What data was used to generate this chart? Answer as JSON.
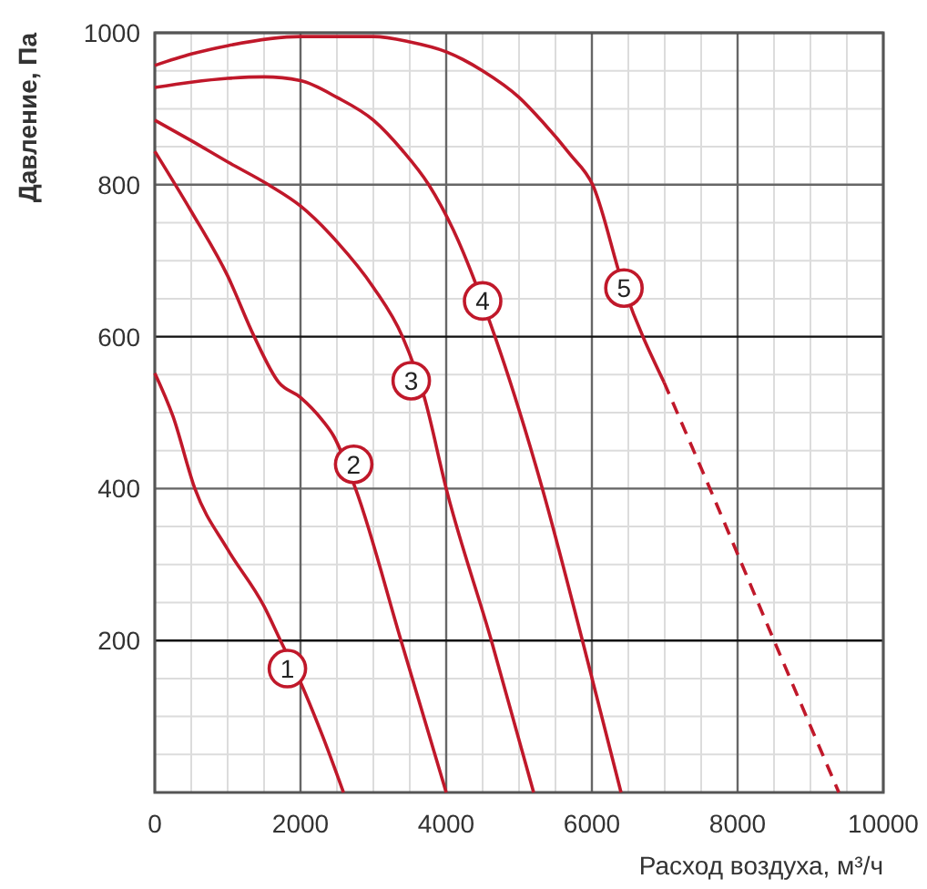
{
  "chart_data": {
    "type": "line",
    "xlabel": "Расход воздуха, м³/ч",
    "ylabel": "Давление, Па",
    "xlim": [
      0,
      10000
    ],
    "xticks": [
      0,
      2000,
      4000,
      6000,
      8000,
      10000
    ],
    "ylim": [
      0,
      1000
    ],
    "yticks": [
      200,
      400,
      600,
      800,
      1000
    ],
    "grid": true,
    "marker": "none",
    "series": [
      {
        "color": "#c0182a",
        "line_style": "solid",
        "x": [
          0,
          250,
          550,
          1000,
          1500,
          1725,
          2000,
          2300,
          2590
        ],
        "values": [
          552,
          495,
          400,
          320,
          245,
          200,
          145,
          75,
          0
        ]
      },
      {
        "color": "#c0182a",
        "line_style": "solid",
        "x": [
          0,
          500,
          1000,
          1365,
          1700,
          2000,
          2300,
          2450,
          2755,
          3380,
          4000
        ],
        "values": [
          844,
          765,
          680,
          600,
          540,
          520,
          490,
          470,
          400,
          200,
          0
        ]
      },
      {
        "color": "#c0182a",
        "line_style": "solid",
        "x": [
          0,
          500,
          1000,
          1560,
          2000,
          2500,
          3000,
          3400,
          3700,
          4000,
          4620,
          5200
        ],
        "values": [
          885,
          858,
          830,
          800,
          772,
          725,
          665,
          600,
          520,
          400,
          200,
          0
        ]
      },
      {
        "color": "#c0182a",
        "line_style": "solid",
        "x": [
          0,
          500,
          1000,
          1500,
          2000,
          2500,
          3000,
          3400,
          3760,
          4100,
          4670,
          5320,
          5870,
          6400
        ],
        "values": [
          928,
          935,
          940,
          942,
          937,
          915,
          885,
          845,
          800,
          740,
          600,
          400,
          200,
          0
        ]
      },
      {
        "color": "#c0182a",
        "line_style": "solid",
        "x": [
          0,
          500,
          1000,
          2000,
          3000,
          3500,
          4000,
          4500,
          5000,
          5320,
          5700,
          6010,
          6440,
          6990
        ],
        "values": [
          957,
          972,
          983,
          995,
          995,
          988,
          975,
          950,
          915,
          883,
          840,
          800,
          664,
          540
        ]
      },
      {
        "color": "#c0182a",
        "line_style": "dashed",
        "x": [
          6990,
          7620,
          8500,
          9390
        ],
        "values": [
          540,
          400,
          200,
          0
        ]
      }
    ],
    "annotations": [
      {
        "text": "1",
        "x": 1820,
        "y": 163
      },
      {
        "text": "2",
        "x": 2730,
        "y": 432
      },
      {
        "text": "3",
        "x": 3520,
        "y": 542
      },
      {
        "text": "4",
        "x": 4500,
        "y": 647
      },
      {
        "text": "5",
        "x": 6440,
        "y": 664
      }
    ]
  }
}
